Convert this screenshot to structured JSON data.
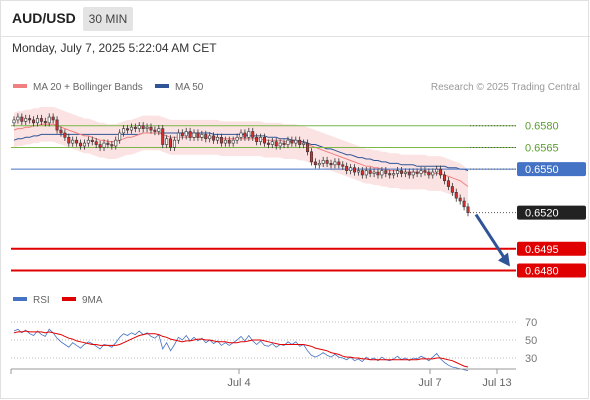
{
  "header": {
    "symbol": "AUD/USD",
    "timeframe": "30 MIN",
    "timestamp": "Monday, July 7, 2025 5:22:04 AM CET"
  },
  "legend_main": [
    {
      "label": "MA 20 + Bollinger Bands",
      "color": "#f08080"
    },
    {
      "label": "MA 50",
      "color": "#2f5597"
    }
  ],
  "legend_rsi": [
    {
      "label": "RSI",
      "color": "#4472c4"
    },
    {
      "label": "9MA",
      "color": "#e00000"
    }
  ],
  "credit": "Research © 2025 Trading Central",
  "colors": {
    "up": "#ffffff",
    "down": "#d32f2f",
    "resistance": "#7ab648",
    "pivot": "#4472c4",
    "support": "#e00000",
    "arrow": "#2f5597"
  },
  "chart_data": [
    {
      "type": "candlestick",
      "title": "AUD/USD",
      "ylim": [
        0.647,
        0.6595
      ],
      "x_ticks": [
        "Jul 4",
        "Jul 7",
        "Jul 13"
      ],
      "levels": [
        {
          "label": "0.6580",
          "value": 0.658,
          "kind": "resistance"
        },
        {
          "label": "0.6565",
          "value": 0.6565,
          "kind": "resistance"
        },
        {
          "label": "0.6550",
          "value": 0.655,
          "kind": "pivot"
        },
        {
          "label": "0.6520",
          "value": 0.652,
          "kind": "last"
        },
        {
          "label": "0.6495",
          "value": 0.6495,
          "kind": "support"
        },
        {
          "label": "0.6480",
          "value": 0.648,
          "kind": "support"
        }
      ],
      "projection": {
        "from": 0.652,
        "to": 0.648
      },
      "candles_close": [
        0.6584,
        0.6586,
        0.6583,
        0.6585,
        0.6584,
        0.6582,
        0.6585,
        0.6583,
        0.6582,
        0.6586,
        0.6584,
        0.6577,
        0.6575,
        0.6572,
        0.6568,
        0.657,
        0.6568,
        0.6566,
        0.6568,
        0.657,
        0.6569,
        0.6567,
        0.6565,
        0.6568,
        0.6567,
        0.6566,
        0.657,
        0.6575,
        0.6578,
        0.6577,
        0.6579,
        0.6578,
        0.658,
        0.6578,
        0.6579,
        0.6577,
        0.6576,
        0.6578,
        0.6567,
        0.6571,
        0.6565,
        0.657,
        0.6575,
        0.6573,
        0.6576,
        0.6572,
        0.6575,
        0.6572,
        0.6574,
        0.6571,
        0.6573,
        0.657,
        0.6572,
        0.6568,
        0.657,
        0.6568,
        0.657,
        0.6572,
        0.6575,
        0.6572,
        0.6576,
        0.6572,
        0.6569,
        0.6572,
        0.6568,
        0.6567,
        0.6569,
        0.6566,
        0.6568,
        0.6567,
        0.657,
        0.6568,
        0.657,
        0.6567,
        0.6568,
        0.6562,
        0.6555,
        0.6553,
        0.6554,
        0.6556,
        0.6554,
        0.6553,
        0.6555,
        0.6553,
        0.6552,
        0.6549,
        0.6551,
        0.6548,
        0.6549,
        0.6546,
        0.6549,
        0.6547,
        0.6548,
        0.6546,
        0.6549,
        0.6547,
        0.6546,
        0.6547,
        0.6549,
        0.6547,
        0.6548,
        0.6546,
        0.6548,
        0.6547,
        0.6549,
        0.6548,
        0.6546,
        0.6548,
        0.655,
        0.6546,
        0.6542,
        0.6538,
        0.6534,
        0.653,
        0.6528,
        0.6524,
        0.652
      ],
      "ma20": [
        0.6577,
        0.6578,
        0.6578,
        0.6579,
        0.6579,
        0.658,
        0.658,
        0.6581,
        0.6581,
        0.6581,
        0.6581,
        0.658,
        0.6579,
        0.6578,
        0.6577,
        0.6576,
        0.6575,
        0.6574,
        0.6573,
        0.6573,
        0.6572,
        0.6571,
        0.657,
        0.657,
        0.6569,
        0.6569,
        0.6569,
        0.657,
        0.6571,
        0.6572,
        0.6572,
        0.6573,
        0.6574,
        0.6575,
        0.6575,
        0.6575,
        0.6575,
        0.6575,
        0.6574,
        0.6573,
        0.6572,
        0.6572,
        0.6572,
        0.6572,
        0.6572,
        0.6572,
        0.6572,
        0.6572,
        0.6572,
        0.6572,
        0.6572,
        0.6572,
        0.6572,
        0.6571,
        0.6571,
        0.6571,
        0.6571,
        0.6571,
        0.6571,
        0.6571,
        0.6571,
        0.6571,
        0.6571,
        0.6571,
        0.657,
        0.657,
        0.657,
        0.657,
        0.657,
        0.6569,
        0.6569,
        0.6569,
        0.6569,
        0.6568,
        0.6568,
        0.6567,
        0.6566,
        0.6565,
        0.6564,
        0.6563,
        0.6562,
        0.6561,
        0.656,
        0.6559,
        0.6558,
        0.6557,
        0.6556,
        0.6555,
        0.6554,
        0.6553,
        0.6552,
        0.6552,
        0.6551,
        0.6551,
        0.655,
        0.655,
        0.6549,
        0.6549,
        0.6549,
        0.6548,
        0.6548,
        0.6548,
        0.6548,
        0.6548,
        0.6548,
        0.6548,
        0.6547,
        0.6547,
        0.6547,
        0.6547,
        0.6546,
        0.6545,
        0.6544,
        0.6543,
        0.6542,
        0.654,
        0.6538
      ],
      "ma50": [
        0.657,
        0.6571,
        0.6571,
        0.6572,
        0.6572,
        0.6573,
        0.6573,
        0.6574,
        0.6574,
        0.6574,
        0.6574,
        0.6574,
        0.6574,
        0.6574,
        0.6574,
        0.6574,
        0.6574,
        0.6574,
        0.6574,
        0.6574,
        0.6574,
        0.6574,
        0.6574,
        0.6574,
        0.6574,
        0.6574,
        0.6574,
        0.6574,
        0.6574,
        0.6574,
        0.6574,
        0.6574,
        0.6574,
        0.6575,
        0.6575,
        0.6575,
        0.6575,
        0.6575,
        0.6575,
        0.6575,
        0.6575,
        0.6575,
        0.6575,
        0.6575,
        0.6575,
        0.6575,
        0.6575,
        0.6575,
        0.6575,
        0.6575,
        0.6575,
        0.6574,
        0.6574,
        0.6574,
        0.6574,
        0.6574,
        0.6574,
        0.6574,
        0.6574,
        0.6574,
        0.6573,
        0.6573,
        0.6573,
        0.6573,
        0.6573,
        0.6572,
        0.6572,
        0.6572,
        0.6571,
        0.6571,
        0.6571,
        0.657,
        0.657,
        0.6569,
        0.6569,
        0.6568,
        0.6567,
        0.6567,
        0.6566,
        0.6565,
        0.6564,
        0.6564,
        0.6563,
        0.6562,
        0.6561,
        0.656,
        0.656,
        0.6559,
        0.6558,
        0.6558,
        0.6557,
        0.6557,
        0.6556,
        0.6556,
        0.6555,
        0.6555,
        0.6554,
        0.6554,
        0.6554,
        0.6553,
        0.6553,
        0.6553,
        0.6553,
        0.6552,
        0.6552,
        0.6552,
        0.6552,
        0.6552,
        0.6552,
        0.6552,
        0.6552,
        0.6551,
        0.6551,
        0.6551,
        0.655,
        0.655,
        0.6549
      ],
      "bb_width": 0.0012
    },
    {
      "type": "line",
      "title": "RSI",
      "ylim": [
        20,
        80
      ],
      "y_ticks": [
        "70",
        "50",
        "30"
      ],
      "series": [
        {
          "name": "RSI",
          "values": [
            60,
            62,
            58,
            61,
            57,
            55,
            60,
            56,
            54,
            62,
            58,
            52,
            48,
            45,
            42,
            47,
            44,
            41,
            45,
            48,
            46,
            43,
            40,
            45,
            44,
            42,
            47,
            53,
            57,
            55,
            58,
            56,
            60,
            56,
            58,
            54,
            52,
            56,
            40,
            47,
            38,
            45,
            53,
            50,
            55,
            49,
            53,
            49,
            52,
            47,
            50,
            46,
            49,
            44,
            47,
            44,
            47,
            50,
            54,
            49,
            55,
            49,
            45,
            49,
            44,
            43,
            46,
            42,
            45,
            44,
            48,
            45,
            48,
            43,
            45,
            38,
            33,
            31,
            33,
            36,
            33,
            31,
            34,
            31,
            30,
            28,
            31,
            27,
            29,
            26,
            31,
            28,
            30,
            27,
            31,
            28,
            27,
            29,
            32,
            28,
            30,
            27,
            30,
            29,
            32,
            30,
            27,
            31,
            35,
            29,
            25,
            22,
            20,
            19,
            18,
            17,
            16
          ]
        },
        {
          "name": "9MA",
          "values": [
            58,
            59,
            59,
            60,
            59,
            59,
            59,
            59,
            58,
            59,
            58,
            57,
            56,
            54,
            52,
            51,
            49,
            48,
            47,
            46,
            45,
            45,
            44,
            44,
            44,
            44,
            44,
            45,
            47,
            49,
            51,
            53,
            55,
            56,
            57,
            57,
            57,
            56,
            54,
            53,
            51,
            50,
            49,
            48,
            49,
            49,
            50,
            51,
            51,
            50,
            50,
            49,
            48,
            48,
            48,
            47,
            47,
            47,
            48,
            48,
            49,
            50,
            50,
            50,
            49,
            48,
            47,
            46,
            45,
            45,
            45,
            45,
            45,
            45,
            45,
            44,
            43,
            41,
            40,
            39,
            38,
            36,
            35,
            34,
            32,
            31,
            31,
            30,
            30,
            29,
            29,
            28,
            28,
            28,
            28,
            28,
            28,
            28,
            28,
            28,
            28,
            28,
            28,
            28,
            29,
            29,
            29,
            29,
            30,
            30,
            29,
            28,
            27,
            25,
            23,
            21,
            20
          ]
        }
      ]
    }
  ]
}
